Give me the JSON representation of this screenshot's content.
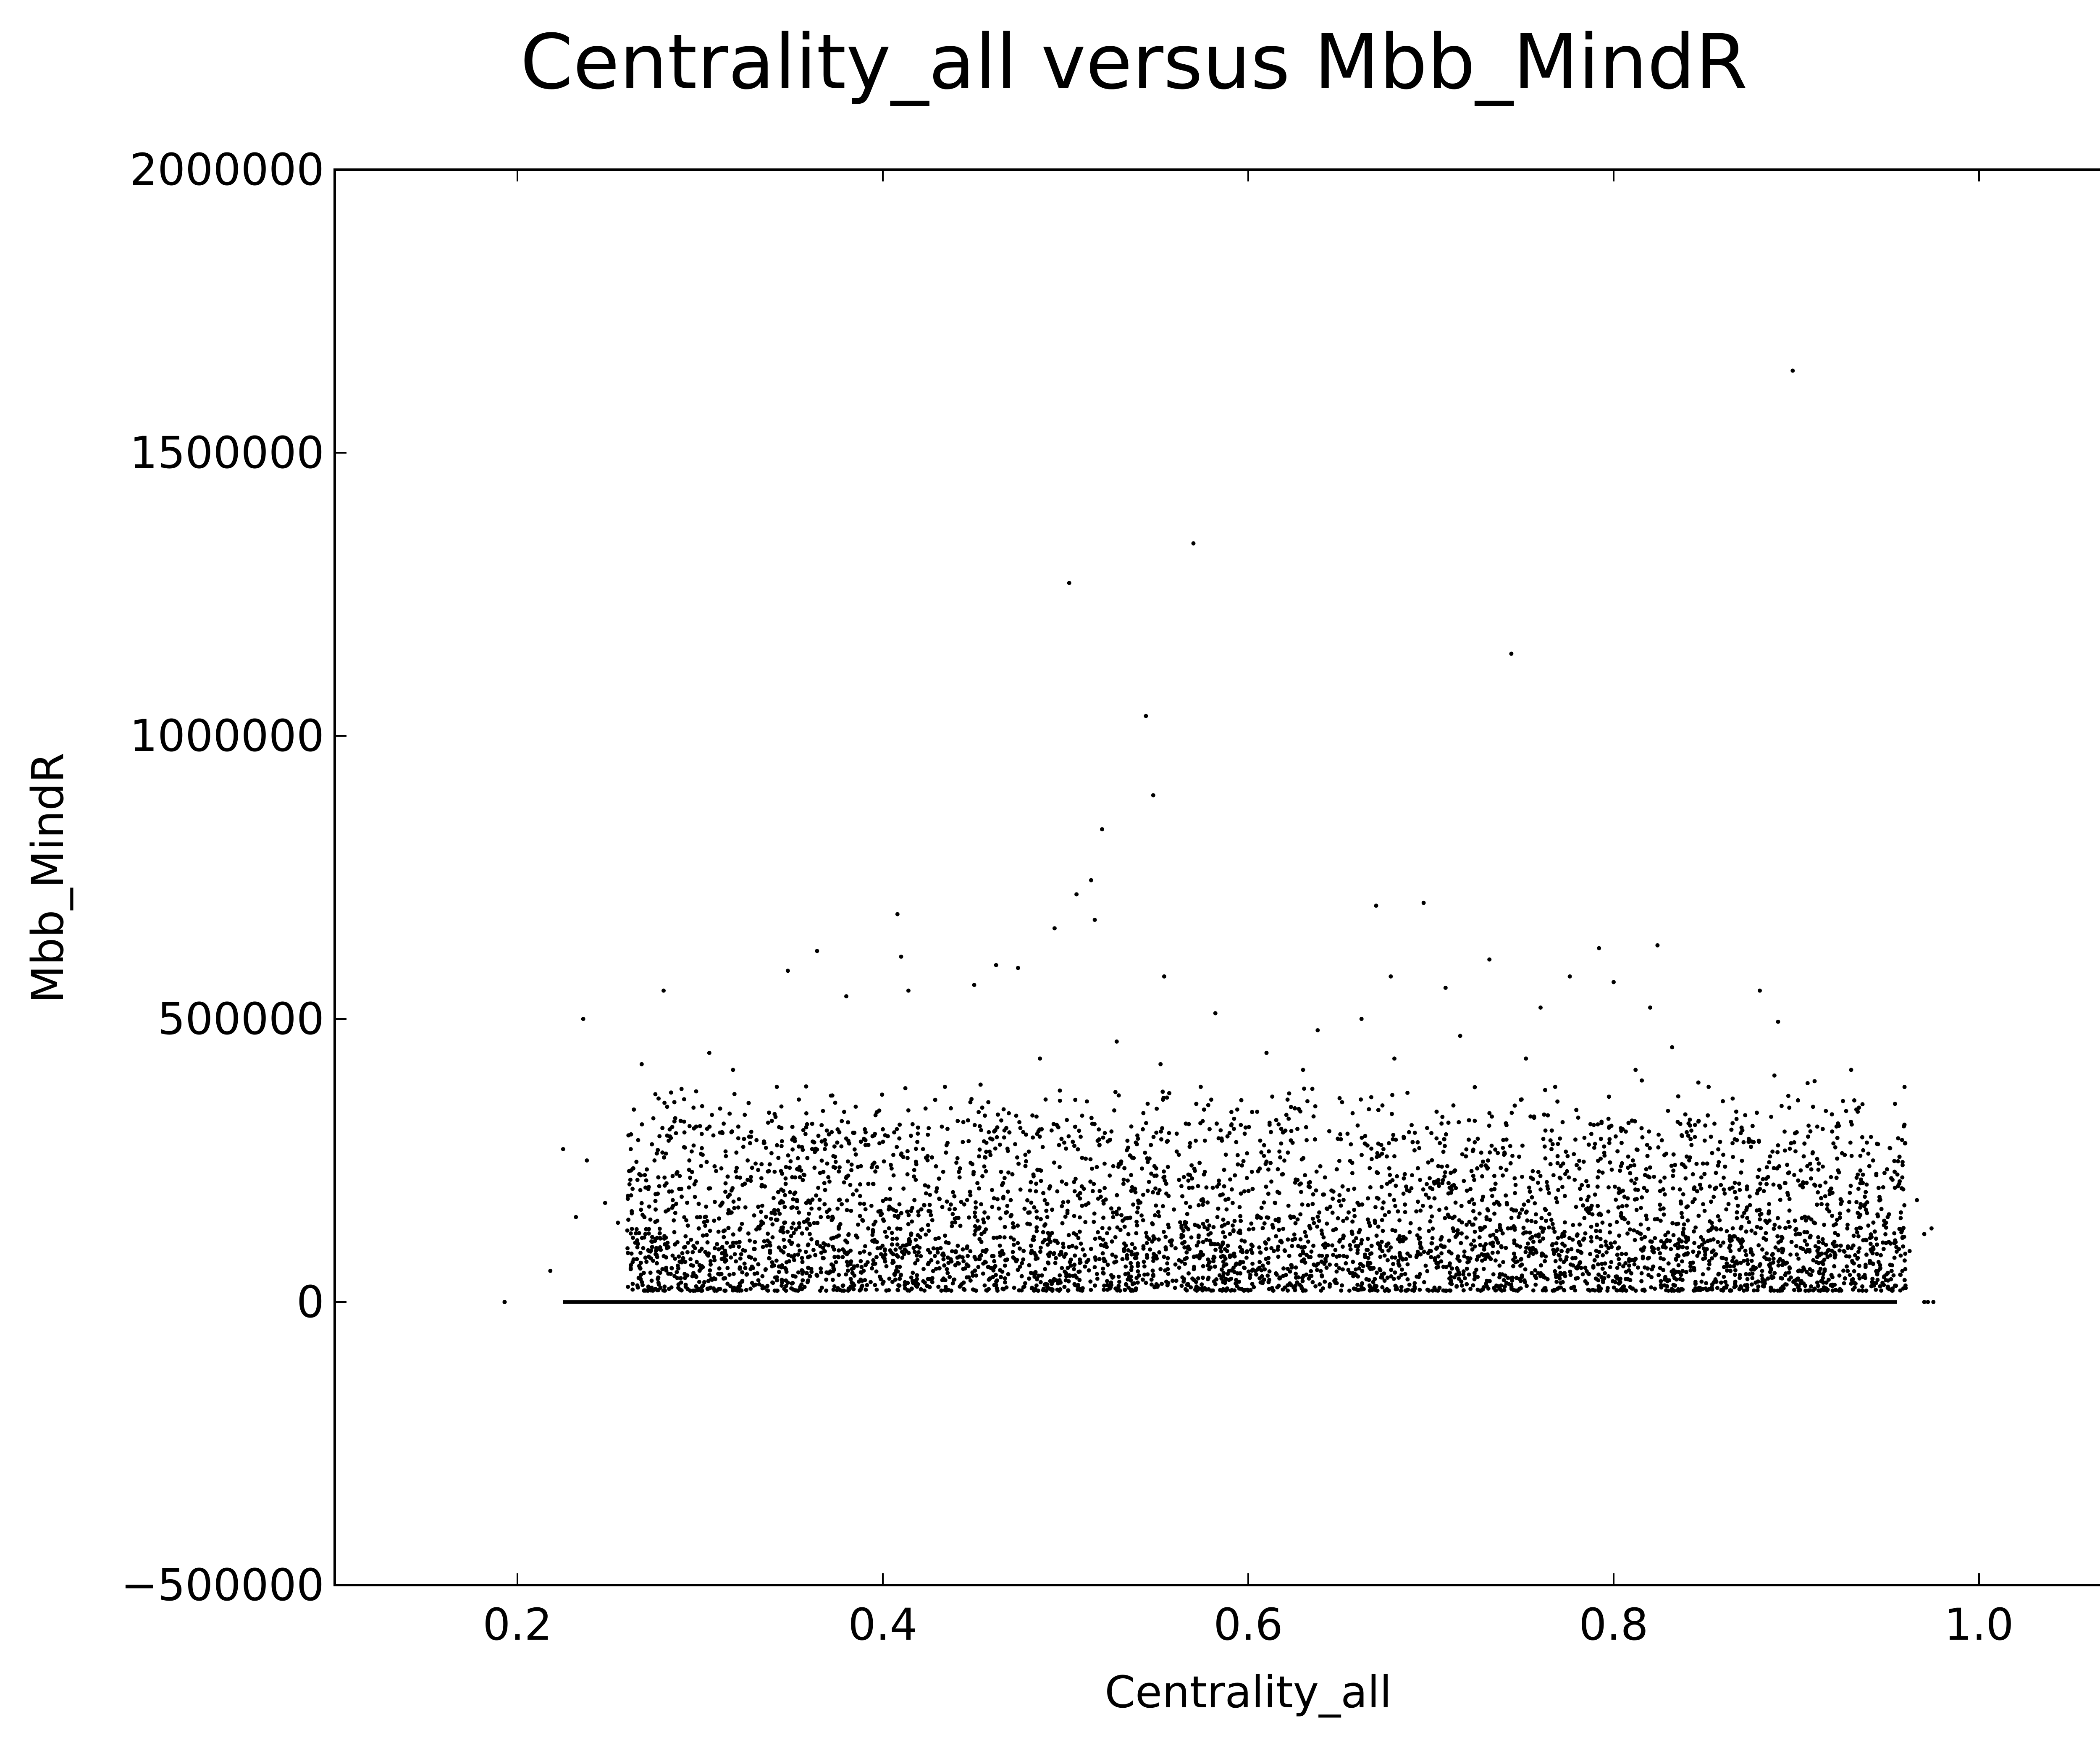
{
  "chart_data": {
    "type": "scatter",
    "title": "Centrality_all versus Mbb_MindR",
    "xlabel": "Centrality_all",
    "ylabel": "Mbb_MindR",
    "xlim": [
      0.1,
      1.1
    ],
    "ylim": [
      -500000,
      2000000
    ],
    "x_ticks": [
      0.2,
      0.4,
      0.6,
      0.8,
      1.0
    ],
    "x_tick_labels": [
      "0.2",
      "0.4",
      "0.6",
      "0.8",
      "1.0"
    ],
    "y_ticks": [
      -500000,
      0,
      500000,
      1000000,
      1500000,
      2000000
    ],
    "y_tick_labels": [
      "−500000",
      "0",
      "500000",
      "1000000",
      "1500000",
      "2000000"
    ],
    "grid": false,
    "marker_color": "#000000",
    "series": [
      {
        "values_note_free": true,
        "points": [
          [
            0.193,
            0
          ],
          [
            0.218,
            55000
          ],
          [
            0.225,
            270000
          ],
          [
            0.232,
            150000
          ],
          [
            0.236,
            500000
          ],
          [
            0.238,
            250000
          ],
          [
            0.248,
            175000
          ],
          [
            0.255,
            140000
          ],
          [
            0.262,
            60000
          ],
          [
            0.268,
            420000
          ],
          [
            0.27,
            120000
          ],
          [
            0.272,
            90000
          ],
          [
            0.275,
            250000
          ],
          [
            0.28,
            550000
          ],
          [
            0.285,
            180000
          ],
          [
            0.29,
            70000
          ],
          [
            0.295,
            110000
          ],
          [
            0.3,
            150000
          ],
          [
            0.305,
            440000
          ],
          [
            0.308,
            95000
          ],
          [
            0.312,
            300000
          ],
          [
            0.315,
            60000
          ],
          [
            0.318,
            410000
          ],
          [
            0.322,
            130000
          ],
          [
            0.326,
            250000
          ],
          [
            0.33,
            75000
          ],
          [
            0.334,
            170000
          ],
          [
            0.338,
            105000
          ],
          [
            0.342,
            380000
          ],
          [
            0.346,
            140000
          ],
          [
            0.348,
            585000
          ],
          [
            0.352,
            220000
          ],
          [
            0.356,
            50000
          ],
          [
            0.36,
            120000
          ],
          [
            0.364,
            620000
          ],
          [
            0.368,
            90000
          ],
          [
            0.372,
            300000
          ],
          [
            0.376,
            180000
          ],
          [
            0.38,
            540000
          ],
          [
            0.384,
            60000
          ],
          [
            0.388,
            240000
          ],
          [
            0.392,
            130000
          ],
          [
            0.396,
            330000
          ],
          [
            0.4,
            80000
          ],
          [
            0.404,
            200000
          ],
          [
            0.408,
            685000
          ],
          [
            0.41,
            610000
          ],
          [
            0.414,
            550000
          ],
          [
            0.418,
            110000
          ],
          [
            0.422,
            270000
          ],
          [
            0.426,
            160000
          ],
          [
            0.43,
            70000
          ],
          [
            0.434,
            380000
          ],
          [
            0.438,
            140000
          ],
          [
            0.442,
            220000
          ],
          [
            0.446,
            95000
          ],
          [
            0.45,
            560000
          ],
          [
            0.454,
            120000
          ],
          [
            0.458,
            300000
          ],
          [
            0.462,
            595000
          ],
          [
            0.466,
            85000
          ],
          [
            0.47,
            180000
          ],
          [
            0.474,
            590000
          ],
          [
            0.478,
            260000
          ],
          [
            0.482,
            110000
          ],
          [
            0.486,
            430000
          ],
          [
            0.49,
            150000
          ],
          [
            0.494,
            660000
          ],
          [
            0.498,
            60000
          ],
          [
            0.502,
            1270000
          ],
          [
            0.506,
            720000
          ],
          [
            0.51,
            200000
          ],
          [
            0.514,
            745000
          ],
          [
            0.516,
            675000
          ],
          [
            0.52,
            835000
          ],
          [
            0.524,
            130000
          ],
          [
            0.528,
            460000
          ],
          [
            0.532,
            90000
          ],
          [
            0.536,
            310000
          ],
          [
            0.54,
            175000
          ],
          [
            0.544,
            1035000
          ],
          [
            0.548,
            895000
          ],
          [
            0.552,
            420000
          ],
          [
            0.554,
            575000
          ],
          [
            0.558,
            100000
          ],
          [
            0.562,
            260000
          ],
          [
            0.566,
            140000
          ],
          [
            0.57,
            1340000
          ],
          [
            0.574,
            380000
          ],
          [
            0.578,
            75000
          ],
          [
            0.582,
            510000
          ],
          [
            0.586,
            190000
          ],
          [
            0.59,
            120000
          ],
          [
            0.594,
            340000
          ],
          [
            0.598,
            60000
          ],
          [
            0.602,
            230000
          ],
          [
            0.606,
            150000
          ],
          [
            0.61,
            440000
          ],
          [
            0.614,
            90000
          ],
          [
            0.618,
            280000
          ],
          [
            0.622,
            170000
          ],
          [
            0.626,
            50000
          ],
          [
            0.63,
            410000
          ],
          [
            0.634,
            130000
          ],
          [
            0.638,
            480000
          ],
          [
            0.642,
            220000
          ],
          [
            0.646,
            100000
          ],
          [
            0.65,
            360000
          ],
          [
            0.654,
            80000
          ],
          [
            0.658,
            200000
          ],
          [
            0.662,
            500000
          ],
          [
            0.666,
            140000
          ],
          [
            0.67,
            700000
          ],
          [
            0.674,
            270000
          ],
          [
            0.678,
            575000
          ],
          [
            0.68,
            430000
          ],
          [
            0.684,
            110000
          ],
          [
            0.688,
            300000
          ],
          [
            0.692,
            160000
          ],
          [
            0.696,
            705000
          ],
          [
            0.7,
            90000
          ],
          [
            0.704,
            240000
          ],
          [
            0.708,
            555000
          ],
          [
            0.712,
            130000
          ],
          [
            0.716,
            470000
          ],
          [
            0.72,
            70000
          ],
          [
            0.724,
            320000
          ],
          [
            0.728,
            180000
          ],
          [
            0.732,
            605000
          ],
          [
            0.736,
            110000
          ],
          [
            0.74,
            260000
          ],
          [
            0.744,
            1145000
          ],
          [
            0.748,
            150000
          ],
          [
            0.752,
            430000
          ],
          [
            0.756,
            85000
          ],
          [
            0.76,
            520000
          ],
          [
            0.764,
            200000
          ],
          [
            0.768,
            380000
          ],
          [
            0.772,
            120000
          ],
          [
            0.776,
            575000
          ],
          [
            0.78,
            60000
          ],
          [
            0.784,
            290000
          ],
          [
            0.788,
            170000
          ],
          [
            0.792,
            625000
          ],
          [
            0.796,
            100000
          ],
          [
            0.8,
            565000
          ],
          [
            0.804,
            240000
          ],
          [
            0.808,
            140000
          ],
          [
            0.812,
            410000
          ],
          [
            0.816,
            80000
          ],
          [
            0.82,
            520000
          ],
          [
            0.824,
            630000
          ],
          [
            0.828,
            190000
          ],
          [
            0.832,
            450000
          ],
          [
            0.836,
            110000
          ],
          [
            0.84,
            300000
          ],
          [
            0.844,
            60000
          ],
          [
            0.848,
            220000
          ],
          [
            0.852,
            380000
          ],
          [
            0.856,
            130000
          ],
          [
            0.86,
            260000
          ],
          [
            0.864,
            90000
          ],
          [
            0.868,
            170000
          ],
          [
            0.872,
            330000
          ],
          [
            0.876,
            50000
          ],
          [
            0.88,
            550000
          ],
          [
            0.884,
            140000
          ],
          [
            0.888,
            400000
          ],
          [
            0.89,
            495000
          ],
          [
            0.894,
            210000
          ],
          [
            0.898,
            1645000
          ],
          [
            0.902,
            120000
          ],
          [
            0.906,
            240000
          ],
          [
            0.91,
            390000
          ],
          [
            0.914,
            70000
          ],
          [
            0.918,
            160000
          ],
          [
            0.922,
            310000
          ],
          [
            0.926,
            90000
          ],
          [
            0.93,
            410000
          ],
          [
            0.934,
            200000
          ],
          [
            0.938,
            110000
          ],
          [
            0.942,
            250000
          ],
          [
            0.946,
            60000
          ],
          [
            0.95,
            150000
          ],
          [
            0.954,
            350000
          ],
          [
            0.958,
            220000
          ],
          [
            0.962,
            90000
          ],
          [
            0.966,
            180000
          ],
          [
            0.97,
            120000
          ],
          [
            0.974,
            130000
          ]
        ]
      }
    ],
    "zero_band": {
      "x_start": 0.225,
      "x_end": 0.955,
      "y": 0
    },
    "zero_points": [
      0.193,
      0.97,
      0.972,
      0.975
    ]
  }
}
